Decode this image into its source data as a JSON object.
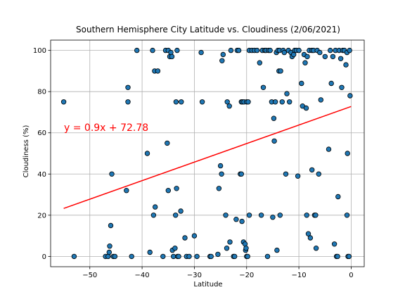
{
  "chart_data": {
    "type": "scatter",
    "title": "Southern Hemisphere City Latitude vs. Cloudiness (2/06/2021)",
    "xlabel": "Latitude",
    "ylabel": "Cloudiness (%)",
    "xlim": [
      -57.5,
      2.5
    ],
    "ylim": [
      -5,
      105
    ],
    "xticks": [
      -50,
      -40,
      -30,
      -20,
      -10,
      0
    ],
    "xtick_labels": [
      "−50",
      "−40",
      "−30",
      "−20",
      "−10",
      "0"
    ],
    "yticks": [
      0,
      20,
      40,
      60,
      80,
      100
    ],
    "ytick_labels": [
      "0",
      "20",
      "40",
      "60",
      "80",
      "100"
    ],
    "grid": true,
    "point_color": "#1f77b4",
    "point_edge_color": "#000000",
    "regression": {
      "equation": "y = 0.9x + 72.78",
      "slope": 0.9,
      "intercept": 72.78,
      "x_range": [
        -55,
        0
      ],
      "color": "#ff0000"
    },
    "points": [
      [
        -55,
        75
      ],
      [
        -53,
        0
      ],
      [
        -47,
        0
      ],
      [
        -46.5,
        0
      ],
      [
        -46.3,
        2
      ],
      [
        -46.2,
        5
      ],
      [
        -46,
        15
      ],
      [
        -45.8,
        40
      ],
      [
        -45.5,
        0
      ],
      [
        -45.2,
        0
      ],
      [
        -43,
        32
      ],
      [
        -42.7,
        82
      ],
      [
        -42.7,
        75
      ],
      [
        -42,
        0
      ],
      [
        -41,
        100
      ],
      [
        -39,
        50
      ],
      [
        -38.5,
        2
      ],
      [
        -38,
        100
      ],
      [
        -37.8,
        20
      ],
      [
        -37.6,
        90
      ],
      [
        -37.5,
        24
      ],
      [
        -37,
        90
      ],
      [
        -36,
        0
      ],
      [
        -35.5,
        100
      ],
      [
        -35.2,
        55
      ],
      [
        -35,
        32
      ],
      [
        -35,
        100
      ],
      [
        -34.7,
        97
      ],
      [
        -34.5,
        99
      ],
      [
        -34.3,
        97
      ],
      [
        -34.2,
        3
      ],
      [
        -34,
        0
      ],
      [
        -33.7,
        4
      ],
      [
        -33.6,
        20
      ],
      [
        -33.5,
        75
      ],
      [
        -33.4,
        33
      ],
      [
        -33.3,
        100
      ],
      [
        -33.2,
        0
      ],
      [
        -33,
        0
      ],
      [
        -32.6,
        22
      ],
      [
        -32.5,
        75
      ],
      [
        -31.8,
        9
      ],
      [
        -31.5,
        0
      ],
      [
        -31,
        0
      ],
      [
        -30,
        10
      ],
      [
        -29.5,
        0
      ],
      [
        -28.7,
        99
      ],
      [
        -28.5,
        75
      ],
      [
        -27,
        0
      ],
      [
        -26.8,
        0
      ],
      [
        -25.5,
        1
      ],
      [
        -25.3,
        33
      ],
      [
        -25,
        44
      ],
      [
        -24.8,
        40
      ],
      [
        -24.7,
        95
      ],
      [
        -24.5,
        98
      ],
      [
        -24,
        20
      ],
      [
        -23.8,
        4
      ],
      [
        -23.7,
        75
      ],
      [
        -23.3,
        73
      ],
      [
        -23.2,
        7
      ],
      [
        -23,
        100
      ],
      [
        -22.5,
        0
      ],
      [
        -22.3,
        0
      ],
      [
        -22,
        18
      ],
      [
        -21.8,
        100
      ],
      [
        -21.5,
        100
      ],
      [
        -21.2,
        40
      ],
      [
        -21,
        40
      ],
      [
        -21,
        75
      ],
      [
        -20.9,
        17
      ],
      [
        -20.8,
        75
      ],
      [
        -20.6,
        7
      ],
      [
        -20.5,
        75
      ],
      [
        -20.3,
        6
      ],
      [
        -20.2,
        3
      ],
      [
        -20.1,
        4
      ],
      [
        -20,
        75
      ],
      [
        -20,
        0
      ],
      [
        -19.8,
        0
      ],
      [
        -19.7,
        75
      ],
      [
        -19.5,
        20
      ],
      [
        -19.5,
        100
      ],
      [
        -19,
        100
      ],
      [
        -18.5,
        100
      ],
      [
        -18,
        100
      ],
      [
        -17.5,
        94
      ],
      [
        -17.2,
        20
      ],
      [
        -17,
        100
      ],
      [
        -16.8,
        82
      ],
      [
        -16.5,
        100
      ],
      [
        -16.3,
        100
      ],
      [
        -16,
        0
      ],
      [
        -15.8,
        100
      ],
      [
        -15.5,
        100
      ],
      [
        -15.2,
        75
      ],
      [
        -15,
        19
      ],
      [
        -14.8,
        67
      ],
      [
        -14.7,
        56
      ],
      [
        -14.5,
        75
      ],
      [
        -14.3,
        99
      ],
      [
        -14.2,
        3
      ],
      [
        -14,
        100
      ],
      [
        -13.8,
        90
      ],
      [
        -13.7,
        100
      ],
      [
        -13.6,
        20
      ],
      [
        -13.5,
        90
      ],
      [
        -13.2,
        75
      ],
      [
        -13,
        100
      ],
      [
        -12.8,
        99
      ],
      [
        -12.5,
        40
      ],
      [
        -12.3,
        79
      ],
      [
        -12,
        100
      ],
      [
        -11.8,
        75
      ],
      [
        -11.5,
        99
      ],
      [
        -11.3,
        97
      ],
      [
        -11,
        98
      ],
      [
        -10.8,
        100
      ],
      [
        -10.5,
        100
      ],
      [
        -10.2,
        39
      ],
      [
        -10,
        100
      ],
      [
        -9.5,
        84
      ],
      [
        -9.3,
        73
      ],
      [
        -9,
        98
      ],
      [
        -8.8,
        94
      ],
      [
        -8.6,
        72
      ],
      [
        -8.5,
        20
      ],
      [
        -8.4,
        97
      ],
      [
        -8.2,
        11
      ],
      [
        -8,
        100
      ],
      [
        -7.8,
        9
      ],
      [
        -7.5,
        100
      ],
      [
        -7.5,
        42
      ],
      [
        -7.2,
        100
      ],
      [
        -7,
        20
      ],
      [
        -6.8,
        20
      ],
      [
        -6.7,
        4
      ],
      [
        -6.5,
        100
      ],
      [
        -6.2,
        40
      ],
      [
        -6,
        99
      ],
      [
        -5.8,
        76
      ],
      [
        -5,
        97
      ],
      [
        -4.3,
        52
      ],
      [
        -4,
        100
      ],
      [
        -3.8,
        84
      ],
      [
        -3.5,
        97
      ],
      [
        -3.2,
        6
      ],
      [
        -3,
        100
      ],
      [
        -2.8,
        0
      ],
      [
        -2.6,
        0
      ],
      [
        -2.5,
        29
      ],
      [
        -2.3,
        100
      ],
      [
        -2,
        96
      ],
      [
        -1.8,
        82
      ],
      [
        -1.6,
        100
      ],
      [
        -1.3,
        100
      ],
      [
        -1,
        93
      ],
      [
        -0.8,
        99
      ],
      [
        -0.8,
        20
      ],
      [
        -0.7,
        50
      ],
      [
        -0.6,
        0
      ],
      [
        -0.4,
        0
      ],
      [
        -0.3,
        100
      ],
      [
        -0.2,
        78
      ]
    ]
  }
}
